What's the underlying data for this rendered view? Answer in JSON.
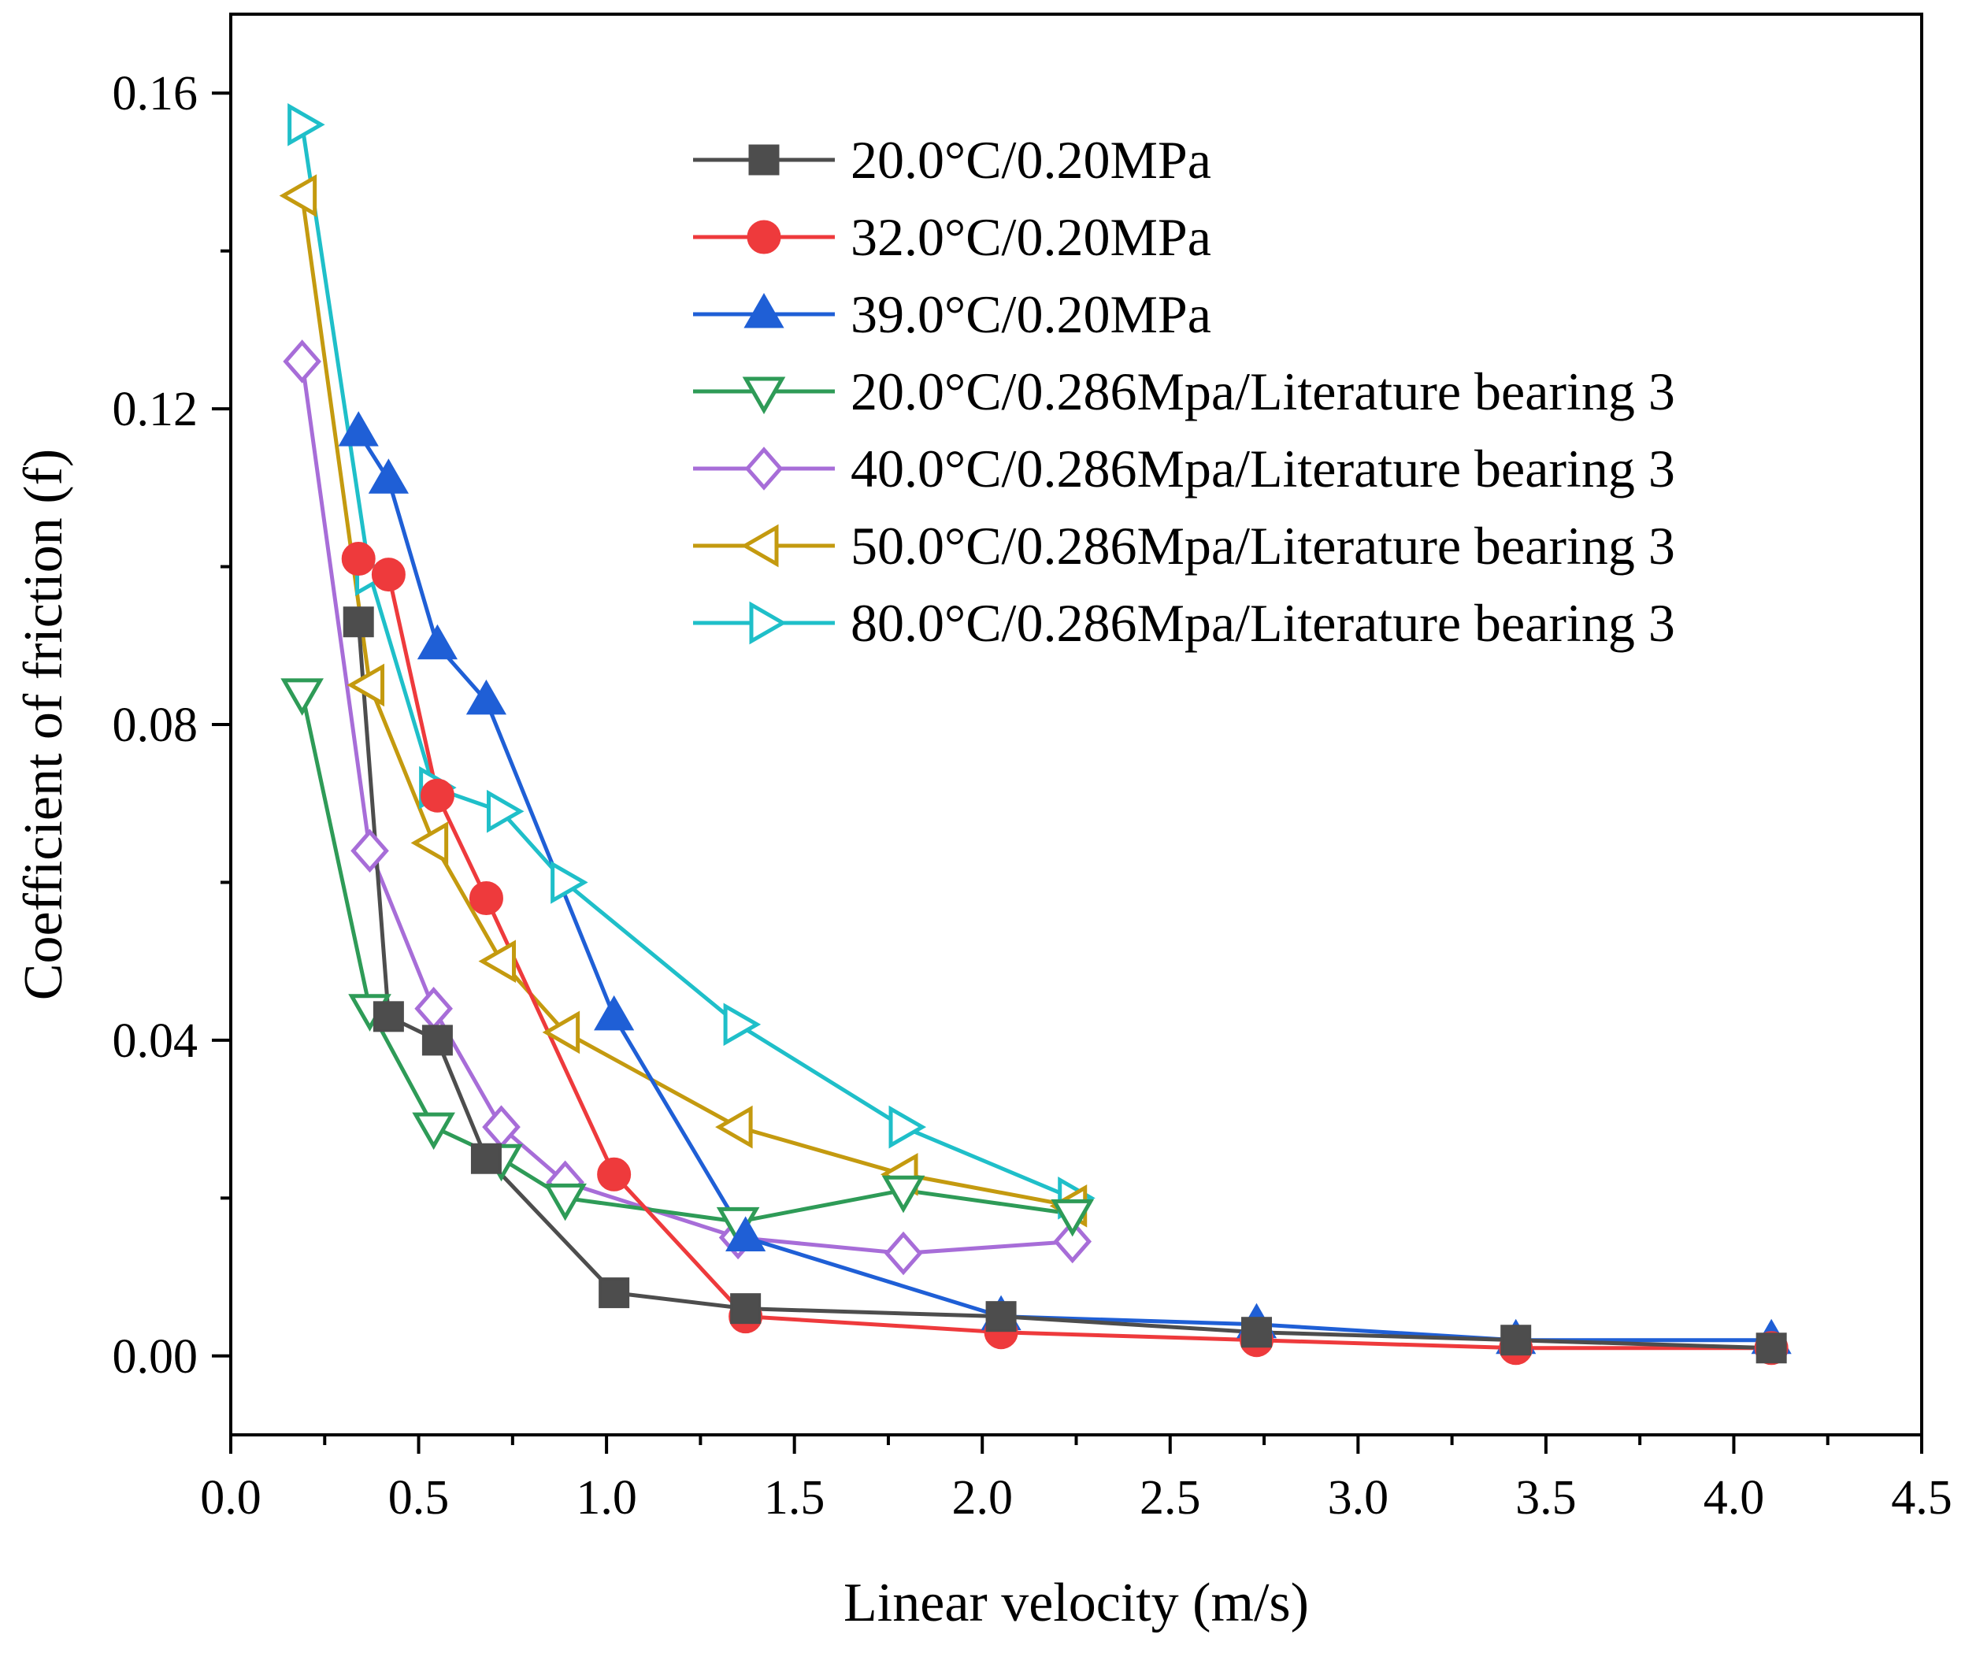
{
  "chart_data": {
    "type": "line",
    "title": "",
    "xlabel": "Linear velocity (m/s)",
    "ylabel": "Coefficient of friction (f)",
    "xlim": [
      0.0,
      4.5
    ],
    "ylim": [
      -0.01,
      0.17
    ],
    "x_ticks": [
      "0.0",
      "0.5",
      "1.0",
      "1.5",
      "2.0",
      "2.5",
      "3.0",
      "3.5",
      "4.0",
      "4.5"
    ],
    "y_ticks": [
      "0.00",
      "0.04",
      "0.08",
      "0.12",
      "0.16"
    ],
    "grid": false,
    "legend_position": "top-right",
    "series": [
      {
        "name": "20.0°C/0.20MPa",
        "color": "#4d4d4d",
        "marker": "square",
        "filled": true,
        "x": [
          0.34,
          0.42,
          0.55,
          0.68,
          1.02,
          1.37,
          2.05,
          2.73,
          3.42,
          4.1
        ],
        "y": [
          0.093,
          0.043,
          0.04,
          0.025,
          0.008,
          0.006,
          0.005,
          0.003,
          0.002,
          0.001
        ]
      },
      {
        "name": "32.0°C/0.20MPa",
        "color": "#ee3a3c",
        "marker": "circle",
        "filled": true,
        "x": [
          0.34,
          0.42,
          0.55,
          0.68,
          1.02,
          1.37,
          2.05,
          2.73,
          3.42,
          4.1
        ],
        "y": [
          0.101,
          0.099,
          0.071,
          0.058,
          0.023,
          0.005,
          0.003,
          0.002,
          0.001,
          0.001
        ]
      },
      {
        "name": "39.0°C/0.20MPa",
        "color": "#1f5fd6",
        "marker": "triangle-up",
        "filled": true,
        "x": [
          0.34,
          0.42,
          0.55,
          0.68,
          1.02,
          1.37,
          2.05,
          2.73,
          3.42,
          4.1
        ],
        "y": [
          0.117,
          0.111,
          0.09,
          0.083,
          0.043,
          0.015,
          0.005,
          0.004,
          0.002,
          0.002
        ]
      },
      {
        "name": "20.0°C/0.286Mpa/Literature bearing 3",
        "color": "#2e9b57",
        "marker": "triangle-down",
        "filled": false,
        "x": [
          0.19,
          0.37,
          0.54,
          0.72,
          0.89,
          1.35,
          1.79,
          2.24
        ],
        "y": [
          0.084,
          0.044,
          0.029,
          0.025,
          0.02,
          0.017,
          0.021,
          0.018
        ]
      },
      {
        "name": "40.0°C/0.286Mpa/Literature bearing 3",
        "color": "#a76dd8",
        "marker": "diamond",
        "filled": false,
        "x": [
          0.19,
          0.37,
          0.54,
          0.72,
          0.89,
          1.35,
          1.79,
          2.24
        ],
        "y": [
          0.126,
          0.064,
          0.044,
          0.029,
          0.022,
          0.015,
          0.013,
          0.0145
        ]
      },
      {
        "name": "50.0°C/0.286Mpa/Literature bearing 3",
        "color": "#c49a0f",
        "marker": "triangle-left",
        "filled": false,
        "x": [
          0.19,
          0.37,
          0.54,
          0.72,
          0.89,
          1.35,
          1.79,
          2.24
        ],
        "y": [
          0.147,
          0.085,
          0.065,
          0.05,
          0.041,
          0.029,
          0.023,
          0.019
        ]
      },
      {
        "name": "80.0°C/0.286Mpa/Literature bearing 3",
        "color": "#1fbfc9",
        "marker": "triangle-right",
        "filled": false,
        "x": [
          0.19,
          0.37,
          0.54,
          0.72,
          0.89,
          1.35,
          1.79,
          2.24
        ],
        "y": [
          0.156,
          0.099,
          0.072,
          0.069,
          0.06,
          0.042,
          0.029,
          0.02
        ]
      }
    ]
  }
}
